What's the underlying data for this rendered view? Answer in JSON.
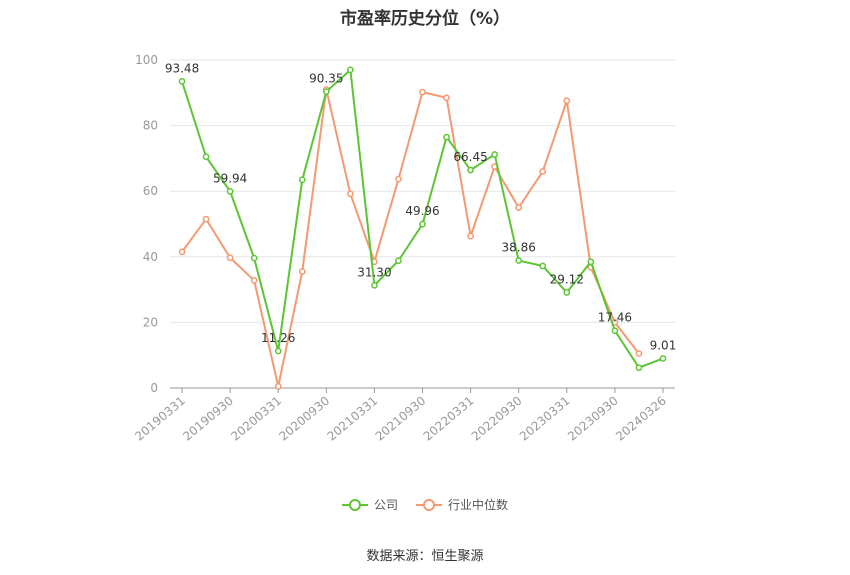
{
  "chart_data": {
    "type": "line",
    "title": "市盈率历史分位（%）",
    "ylim": [
      0,
      100
    ],
    "yticks": [
      "0",
      "20",
      "40",
      "60",
      "80",
      "100"
    ],
    "xtick_labels": [
      "20190331",
      "20190930",
      "20200331",
      "20200930",
      "20210331",
      "20210930",
      "20220331",
      "20220930",
      "20230331",
      "20230930",
      "20240326"
    ],
    "series": [
      {
        "name": "公司",
        "color": "#5cc534",
        "values": [
          93.48,
          70.5,
          59.94,
          39.6,
          11.26,
          63.5,
          90.35,
          97,
          31.3,
          38.8,
          49.96,
          76.5,
          66.45,
          71.2,
          38.86,
          37.2,
          29.12,
          38.5,
          17.46,
          6.2,
          9.01
        ],
        "labels": [
          "93.48",
          "",
          "59.94",
          "",
          "11.26",
          "",
          "90.35",
          "",
          "31.30",
          "",
          "49.96",
          "",
          "66.45",
          "",
          "38.86",
          "",
          "29.12",
          "",
          "17.46",
          "",
          "9.01"
        ]
      },
      {
        "name": "行业中位数",
        "color": "#f39a72",
        "values": [
          41.5,
          51.5,
          39.7,
          32.8,
          0.5,
          35.5,
          91,
          59.2,
          38.5,
          63.7,
          90.2,
          88.5,
          46.3,
          67.5,
          55,
          66,
          87.6,
          36.8,
          20,
          10.5,
          null
        ]
      }
    ],
    "legend_position": "bottom-center",
    "grid": true
  },
  "source_text": "数据来源：恒生聚源"
}
